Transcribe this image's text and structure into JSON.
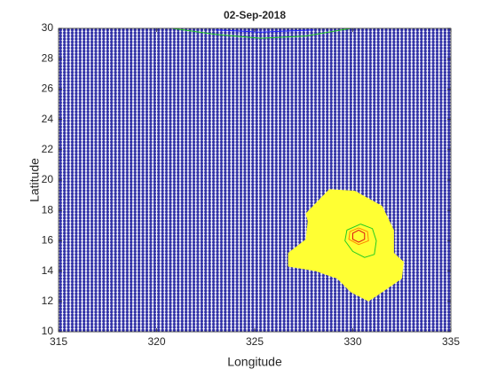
{
  "chart_data": {
    "type": "contour-map",
    "title": "02-Sep-2018",
    "xlabel": "Longitude",
    "ylabel": "Latitude",
    "xlim": [
      315,
      335
    ],
    "ylim": [
      10,
      30
    ],
    "xticks": [
      315,
      320,
      325,
      330,
      335
    ],
    "yticks": [
      10,
      12,
      14,
      16,
      18,
      20,
      22,
      24,
      26,
      28,
      30
    ],
    "background_color": "#2e2ea6",
    "series": [
      {
        "color": "#ffff33",
        "fill": true,
        "x": [
          327.6,
          328.8,
          330.1,
          331.5,
          332.1,
          332.1,
          332.6,
          332.5,
          331.5,
          330.8,
          329.9,
          329.2,
          328.1,
          326.7,
          326.7,
          327.6,
          327.7
        ],
        "y": [
          17.8,
          19.4,
          19.3,
          18.3,
          16.7,
          15.2,
          14.6,
          13.5,
          12.6,
          12.0,
          12.6,
          13.5,
          14.0,
          14.3,
          15.2,
          16.1,
          17.3
        ]
      },
      {
        "color": "#22cc22",
        "fill": false,
        "x": [
          330.4,
          331.0,
          331.2,
          331.1,
          330.6,
          330.0,
          329.6,
          329.7,
          330.4
        ],
        "y": [
          17.1,
          16.8,
          16.0,
          15.1,
          14.9,
          15.3,
          16.0,
          16.7,
          17.1
        ]
      },
      {
        "color": "#ff8800",
        "fill": false,
        "x": [
          330.3,
          330.75,
          330.8,
          330.3,
          329.8,
          329.85,
          330.3
        ],
        "y": [
          16.85,
          16.6,
          16.0,
          15.75,
          16.1,
          16.6,
          16.85
        ]
      },
      {
        "color": "#dd1111",
        "fill": false,
        "x": [
          330.3,
          330.6,
          330.6,
          330.3,
          330.0,
          330.0,
          330.3
        ],
        "y": [
          16.7,
          16.5,
          16.1,
          15.9,
          16.1,
          16.5,
          16.7
        ]
      },
      {
        "color": "#22cc22",
        "fill": false,
        "x": [
          320.8,
          323.0,
          325.3,
          327.6,
          329.9
        ],
        "y": [
          30.0,
          29.6,
          29.35,
          29.5,
          30.0
        ]
      },
      {
        "color": "#2222ff",
        "fill": false,
        "x": [
          323.0,
          325.3,
          328.0
        ],
        "y": [
          29.9,
          29.75,
          29.9
        ]
      }
    ]
  }
}
